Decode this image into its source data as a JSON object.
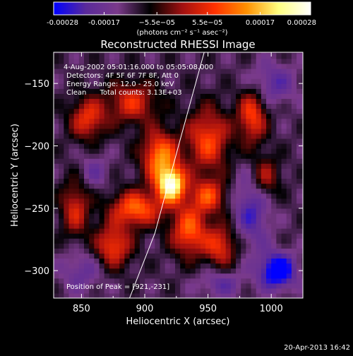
{
  "chart_data": {
    "type": "heatmap",
    "title": "Reconstructed RHESSI Image",
    "xlabel": "Heliocentric X (arcsec)",
    "ylabel": "Heliocentric Y (arcsec)",
    "xlim": [
      828,
      1025
    ],
    "ylim": [
      -322,
      -125
    ],
    "x_ticks": [
      850,
      900,
      950,
      1000
    ],
    "y_ticks": [
      -150,
      -200,
      -250,
      -300
    ],
    "colorbar": {
      "range": [
        -0.00028,
        0.00028
      ],
      "ticks": [
        "-0.00028",
        "-0.00017",
        "−5.5e−05",
        "5.5e−05",
        "0.00017",
        "0.00028"
      ],
      "tick_values": [
        -0.00028,
        -0.00017,
        -5.5e-05,
        5.5e-05,
        0.00017,
        0.00028
      ],
      "unit_label": "(photons cm⁻² s⁻¹ asec⁻²)",
      "colors": [
        "#0000ff",
        "#5a2a9a",
        "#7a3a8a",
        "#000000",
        "#a01010",
        "#ff3000",
        "#ff9000",
        "#ffff80",
        "#ffffff"
      ]
    },
    "annotations": [
      "4-Aug-2002 05:01:16.000 to 05:05:08.000",
      "Detectors: 4F 5F 6F 7F 8F, Att 0",
      "Energy Range: 12.0 - 25.0 keV",
      "Clean      Total counts: 3.13E+03"
    ],
    "peak_label": "Position of Peak = [921,-231]",
    "peak": [
      921,
      -231
    ],
    "limb_line": {
      "points": [
        [
          888,
          -322
        ],
        [
          908,
          -270
        ],
        [
          928,
          -195
        ],
        [
          947,
          -125
        ]
      ]
    },
    "sources": [
      {
        "x": 921,
        "y": -231,
        "amp": 0.00028,
        "sx": 8,
        "sy": 10
      },
      {
        "x": 912,
        "y": -208,
        "amp": 0.00017,
        "sx": 10,
        "sy": 14
      },
      {
        "x": 893,
        "y": -250,
        "amp": 0.00015,
        "sx": 14,
        "sy": 10
      },
      {
        "x": 935,
        "y": -268,
        "amp": 0.00014,
        "sx": 10,
        "sy": 14
      },
      {
        "x": 875,
        "y": -280,
        "amp": 0.00012,
        "sx": 10,
        "sy": 12
      },
      {
        "x": 950,
        "y": -240,
        "amp": 0.00011,
        "sx": 10,
        "sy": 10
      },
      {
        "x": 960,
        "y": -280,
        "amp": 0.0001,
        "sx": 9,
        "sy": 12
      },
      {
        "x": 950,
        "y": -195,
        "amp": 0.00012,
        "sx": 12,
        "sy": 18
      },
      {
        "x": 890,
        "y": -165,
        "amp": 9e-05,
        "sx": 14,
        "sy": 12
      },
      {
        "x": 855,
        "y": -178,
        "amp": 0.0001,
        "sx": 10,
        "sy": 12
      },
      {
        "x": 985,
        "y": -175,
        "amp": 0.00012,
        "sx": 8,
        "sy": 16
      },
      {
        "x": 845,
        "y": -250,
        "amp": 8e-05,
        "sx": 8,
        "sy": 16
      },
      {
        "x": 995,
        "y": -225,
        "amp": 7e-05,
        "sx": 8,
        "sy": 12
      },
      {
        "x": 1000,
        "y": -150,
        "amp": -0.0001,
        "sx": 14,
        "sy": 12
      },
      {
        "x": 1005,
        "y": -300,
        "amp": -0.00022,
        "sx": 10,
        "sy": 10
      },
      {
        "x": 985,
        "y": -250,
        "amp": -0.00012,
        "sx": 10,
        "sy": 22
      },
      {
        "x": 850,
        "y": -300,
        "amp": -8e-05,
        "sx": 12,
        "sy": 12
      },
      {
        "x": 960,
        "y": -310,
        "amp": -9e-05,
        "sx": 12,
        "sy": 8
      },
      {
        "x": 860,
        "y": -220,
        "amp": -7e-05,
        "sx": 8,
        "sy": 10
      }
    ]
  },
  "footer_date": "20-Apr-2013 16:42"
}
